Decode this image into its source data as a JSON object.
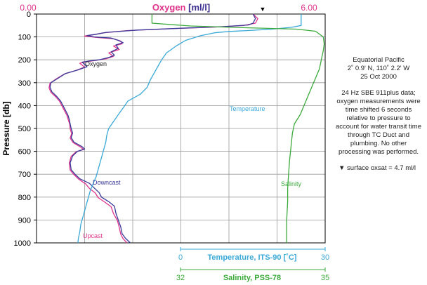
{
  "chart_data": {
    "type": "line",
    "title": "",
    "y_axis": {
      "label": "Pressure [db]",
      "range": [
        0,
        1000
      ],
      "ticks": [
        "0",
        "100",
        "200",
        "300",
        "400",
        "500",
        "600",
        "700",
        "800",
        "900",
        "1000"
      ]
    },
    "x_axes": [
      {
        "id": "oxygen",
        "position": "top",
        "label_parts": [
          "Oxygen",
          "[ml/l]"
        ],
        "range": [
          0,
          6
        ],
        "tick_labels": [
          "0.00",
          "6.00"
        ],
        "color": "#e0348c",
        "label_unit_color": "#3a2e8f"
      },
      {
        "id": "temperature",
        "position": "bottom",
        "label": "Temperature, ITS-90 [˚C]",
        "range": [
          0,
          30
        ],
        "tick_labels": [
          "0",
          "30"
        ],
        "color": "#3aa9d8"
      },
      {
        "id": "salinity",
        "position": "bottom",
        "label": "Salinity, PSS-78",
        "range": [
          32,
          35
        ],
        "tick_labels": [
          "32",
          "35"
        ],
        "color": "#3caa3c"
      }
    ],
    "grid": true,
    "surface_oxsat_marker": 4.7,
    "series": [
      {
        "name": "Downcast",
        "axis": "oxygen",
        "color": "#3a3a9a",
        "points": [
          [
            4.5,
            0
          ],
          [
            4.55,
            20
          ],
          [
            4.5,
            40
          ],
          [
            4.4,
            48
          ],
          [
            3.9,
            55
          ],
          [
            3.0,
            62
          ],
          [
            2.1,
            70
          ],
          [
            1.45,
            80
          ],
          [
            1.25,
            88
          ],
          [
            1.05,
            94
          ],
          [
            1.2,
            100
          ],
          [
            1.55,
            105
          ],
          [
            1.7,
            115
          ],
          [
            1.8,
            125
          ],
          [
            1.65,
            135
          ],
          [
            1.7,
            150
          ],
          [
            1.55,
            165
          ],
          [
            1.62,
            180
          ],
          [
            1.5,
            190
          ],
          [
            1.3,
            200
          ],
          [
            1.1,
            205
          ],
          [
            0.95,
            210
          ],
          [
            1.05,
            230
          ],
          [
            0.85,
            245
          ],
          [
            0.6,
            260
          ],
          [
            0.45,
            280
          ],
          [
            0.3,
            300
          ],
          [
            0.28,
            320
          ],
          [
            0.32,
            340
          ],
          [
            0.42,
            360
          ],
          [
            0.5,
            380
          ],
          [
            0.55,
            400
          ],
          [
            0.6,
            420
          ],
          [
            0.65,
            440
          ],
          [
            0.68,
            460
          ],
          [
            0.7,
            480
          ],
          [
            0.72,
            500
          ],
          [
            0.75,
            520
          ],
          [
            0.72,
            540
          ],
          [
            0.78,
            560
          ],
          [
            0.95,
            580
          ],
          [
            1.0,
            590
          ],
          [
            0.85,
            600
          ],
          [
            0.75,
            620
          ],
          [
            0.7,
            650
          ],
          [
            0.72,
            680
          ],
          [
            0.8,
            700
          ],
          [
            0.9,
            720
          ],
          [
            1.1,
            740
          ],
          [
            1.2,
            760
          ],
          [
            1.3,
            780
          ],
          [
            1.35,
            800
          ],
          [
            1.5,
            820
          ],
          [
            1.62,
            840
          ],
          [
            1.65,
            870
          ],
          [
            1.7,
            900
          ],
          [
            1.75,
            930
          ],
          [
            1.78,
            960
          ],
          [
            1.85,
            980
          ],
          [
            1.95,
            1000
          ]
        ]
      },
      {
        "name": "Upcast",
        "axis": "oxygen",
        "color": "#e0348c",
        "points": [
          [
            4.5,
            0
          ],
          [
            4.6,
            20
          ],
          [
            4.55,
            40
          ],
          [
            4.3,
            50
          ],
          [
            3.7,
            57
          ],
          [
            2.8,
            64
          ],
          [
            1.9,
            72
          ],
          [
            1.4,
            82
          ],
          [
            1.2,
            90
          ],
          [
            1.0,
            96
          ],
          [
            1.25,
            102
          ],
          [
            1.6,
            108
          ],
          [
            1.75,
            118
          ],
          [
            1.78,
            130
          ],
          [
            1.6,
            140
          ],
          [
            1.72,
            155
          ],
          [
            1.5,
            170
          ],
          [
            1.6,
            185
          ],
          [
            1.45,
            195
          ],
          [
            1.25,
            202
          ],
          [
            1.05,
            208
          ],
          [
            0.9,
            215
          ],
          [
            1.0,
            232
          ],
          [
            0.8,
            248
          ],
          [
            0.58,
            262
          ],
          [
            0.42,
            282
          ],
          [
            0.28,
            302
          ],
          [
            0.26,
            322
          ],
          [
            0.3,
            342
          ],
          [
            0.4,
            362
          ],
          [
            0.48,
            382
          ],
          [
            0.53,
            402
          ],
          [
            0.58,
            422
          ],
          [
            0.63,
            442
          ],
          [
            0.66,
            462
          ],
          [
            0.69,
            482
          ],
          [
            0.7,
            502
          ],
          [
            0.73,
            522
          ],
          [
            0.7,
            542
          ],
          [
            0.76,
            562
          ],
          [
            0.92,
            582
          ],
          [
            0.98,
            592
          ],
          [
            0.82,
            602
          ],
          [
            0.72,
            622
          ],
          [
            0.68,
            652
          ],
          [
            0.7,
            682
          ],
          [
            0.78,
            702
          ],
          [
            0.88,
            722
          ],
          [
            1.02,
            742
          ],
          [
            1.1,
            762
          ],
          [
            1.22,
            782
          ],
          [
            1.28,
            802
          ],
          [
            1.42,
            822
          ],
          [
            1.55,
            842
          ],
          [
            1.6,
            872
          ],
          [
            1.68,
            902
          ],
          [
            1.72,
            932
          ],
          [
            1.75,
            962
          ],
          [
            1.8,
            982
          ],
          [
            1.88,
            1000
          ]
        ]
      },
      {
        "name": "Temperature",
        "axis": "temperature",
        "color": "#3aa9d8",
        "points": [
          [
            27.5,
            0
          ],
          [
            27.5,
            50
          ],
          [
            26.5,
            58
          ],
          [
            24.5,
            66
          ],
          [
            22.0,
            72
          ],
          [
            20.0,
            76
          ],
          [
            18.5,
            82
          ],
          [
            17.0,
            95
          ],
          [
            15.5,
            115
          ],
          [
            14.5,
            140
          ],
          [
            13.5,
            170
          ],
          [
            13.0,
            200
          ],
          [
            12.6,
            230
          ],
          [
            12.2,
            260
          ],
          [
            11.8,
            290
          ],
          [
            11.5,
            320
          ],
          [
            10.8,
            350
          ],
          [
            9.5,
            380
          ],
          [
            9.0,
            410
          ],
          [
            8.5,
            440
          ],
          [
            8.0,
            470
          ],
          [
            7.5,
            500
          ],
          [
            7.3,
            530
          ],
          [
            7.2,
            560
          ],
          [
            7.0,
            590
          ],
          [
            6.8,
            620
          ],
          [
            6.6,
            650
          ],
          [
            6.4,
            680
          ],
          [
            6.2,
            710
          ],
          [
            5.9,
            740
          ],
          [
            5.6,
            770
          ],
          [
            5.4,
            800
          ],
          [
            5.2,
            830
          ],
          [
            5.0,
            860
          ],
          [
            4.8,
            890
          ],
          [
            4.6,
            920
          ],
          [
            4.5,
            950
          ],
          [
            4.35,
            980
          ],
          [
            4.3,
            1000
          ]
        ]
      },
      {
        "name": "Salinity",
        "axis": "salinity",
        "color": "#3caa3c",
        "points": [
          [
            33.2,
            0
          ],
          [
            33.2,
            40
          ],
          [
            33.6,
            52
          ],
          [
            34.2,
            60
          ],
          [
            34.7,
            66
          ],
          [
            34.9,
            75
          ],
          [
            34.98,
            100
          ],
          [
            34.99,
            130
          ],
          [
            34.98,
            160
          ],
          [
            34.96,
            200
          ],
          [
            34.94,
            240
          ],
          [
            34.9,
            280
          ],
          [
            34.86,
            320
          ],
          [
            34.82,
            360
          ],
          [
            34.78,
            400
          ],
          [
            34.74,
            440
          ],
          [
            34.68,
            480
          ],
          [
            34.66,
            520
          ],
          [
            34.65,
            560
          ],
          [
            34.64,
            600
          ],
          [
            34.63,
            640
          ],
          [
            34.62,
            700
          ],
          [
            34.61,
            760
          ],
          [
            34.61,
            820
          ],
          [
            34.6,
            900
          ],
          [
            34.6,
            1000
          ]
        ]
      }
    ],
    "annotations": [
      {
        "text": "Oxygen",
        "color": "#222222"
      },
      {
        "text": "Downcast",
        "color": "#3a3a9a"
      },
      {
        "text": "Upcast",
        "color": "#e0348c"
      },
      {
        "text": "Temperature",
        "color": "#3aa9d8"
      },
      {
        "text": "Salinity",
        "color": "#3caa3c"
      }
    ]
  },
  "notes": {
    "location": [
      "Equatorial Pacific",
      "2˚ 0.9' N, 110˚ 2.2' W",
      "25 Oct 2000"
    ],
    "processing": [
      "24 Hz SBE 911plus data;",
      "oxygen measurements were",
      "time shifted 6 seconds",
      "relative to pressure to",
      "account for water transit time",
      "through TC Duct and",
      "plumbing. No other",
      "processing was performed."
    ],
    "oxsat_symbol": "▼",
    "oxsat": "surface oxsat = 4.7 ml/l"
  }
}
